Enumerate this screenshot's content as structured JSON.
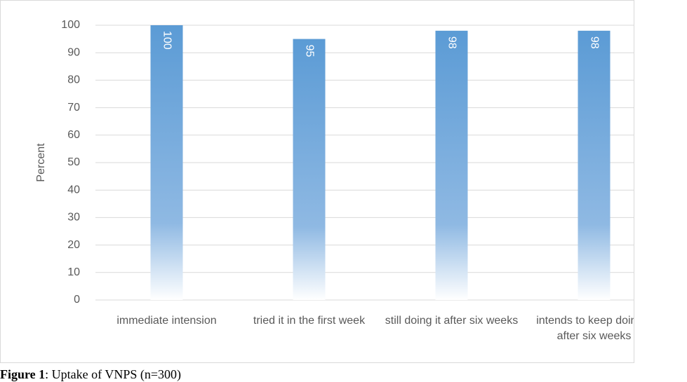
{
  "chart_data": {
    "type": "bar",
    "y_label": "Percent",
    "categories": [
      "immediate intension",
      "tried it in the first week",
      "still doing it after six weeks",
      "intends to keep doing it after six weeks"
    ],
    "values": [
      100,
      95,
      98,
      98
    ],
    "color": "#5b9bd5",
    "ylim": [
      0,
      100
    ],
    "yticks": [
      0,
      10,
      20,
      30,
      40,
      50,
      60,
      70,
      80,
      90,
      100
    ],
    "grid": true,
    "caption_label": "Figure 1",
    "caption": ": Uptake of VNPS (n=300)"
  }
}
